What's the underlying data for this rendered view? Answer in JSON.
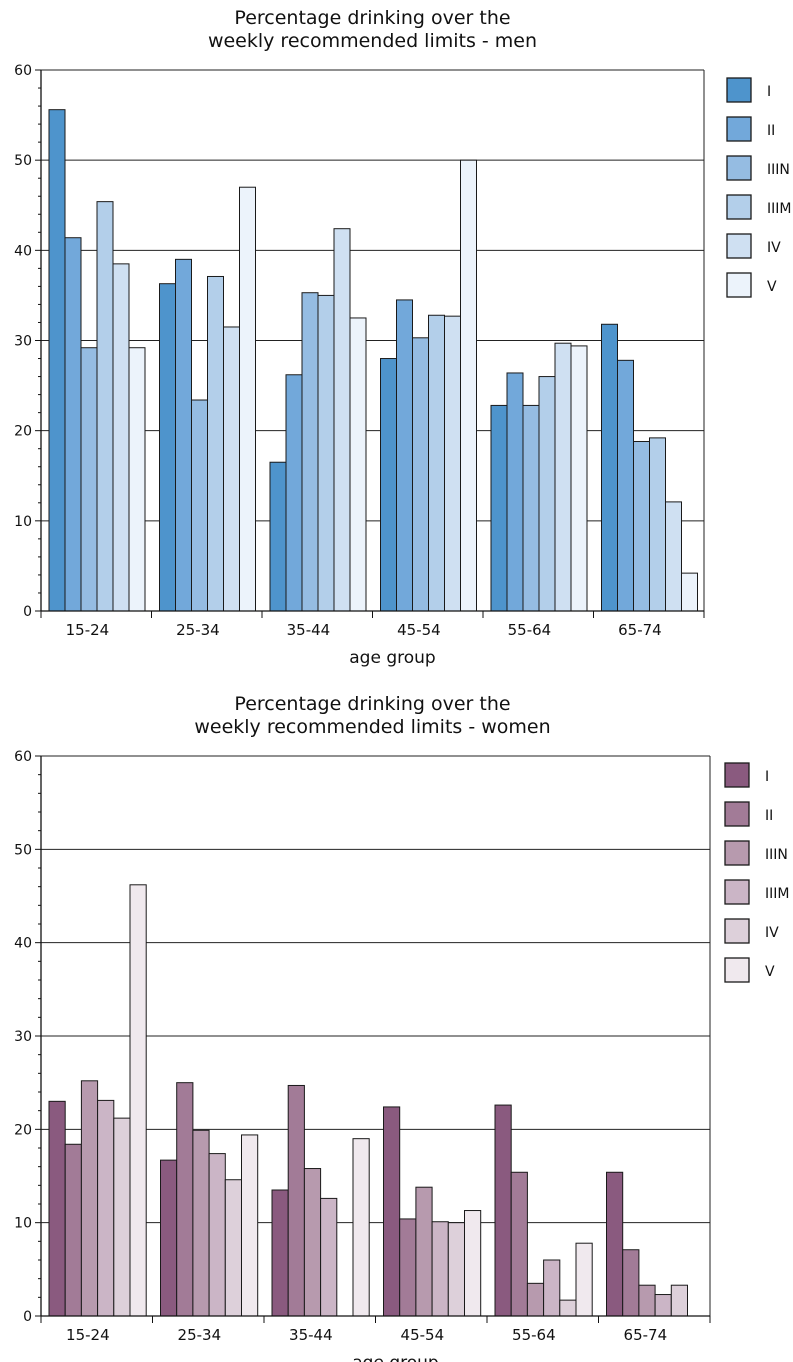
{
  "chart_data": [
    {
      "type": "bar",
      "title_line1": "Percentage drinking over the",
      "title_line2": "weekly recommended limits - men",
      "xlabel": "age group",
      "ylabel": "",
      "ylim": [
        0,
        60
      ],
      "yticks": [
        0,
        10,
        20,
        30,
        40,
        50,
        60
      ],
      "grid": true,
      "legend_position": "right",
      "categories": [
        "15-24",
        "25-34",
        "35-44",
        "45-54",
        "55-64",
        "65-74"
      ],
      "series": [
        {
          "name": "I",
          "color": "#4e94cc",
          "values": [
            55.6,
            36.3,
            16.5,
            28.0,
            22.8,
            31.8
          ]
        },
        {
          "name": "II",
          "color": "#72a8da",
          "values": [
            41.4,
            39.0,
            26.2,
            34.5,
            26.4,
            27.8
          ]
        },
        {
          "name": "IIIN",
          "color": "#95bce2",
          "values": [
            29.2,
            23.4,
            35.3,
            30.3,
            22.8,
            18.8
          ]
        },
        {
          "name": "IIIM",
          "color": "#b3cfea",
          "values": [
            45.4,
            37.1,
            35.0,
            32.8,
            26.0,
            19.2
          ]
        },
        {
          "name": "IV",
          "color": "#cfe0f2",
          "values": [
            38.5,
            31.5,
            42.4,
            32.7,
            29.7,
            12.1
          ]
        },
        {
          "name": "V",
          "color": "#ecf3fb",
          "values": [
            29.2,
            47.0,
            32.5,
            50.0,
            29.4,
            4.2
          ]
        }
      ]
    },
    {
      "type": "bar",
      "title_line1": "Percentage drinking over the",
      "title_line2": "weekly recommended limits - women",
      "xlabel": "age group",
      "ylabel": "",
      "ylim": [
        0,
        60
      ],
      "yticks": [
        0,
        10,
        20,
        30,
        40,
        50,
        60
      ],
      "grid": true,
      "legend_position": "right",
      "categories": [
        "15-24",
        "25-34",
        "35-44",
        "45-54",
        "55-64",
        "65-74"
      ],
      "series": [
        {
          "name": "I",
          "color": "#8a5a7f",
          "values": [
            23.0,
            16.7,
            13.5,
            22.4,
            22.6,
            15.4
          ]
        },
        {
          "name": "II",
          "color": "#a27b97",
          "values": [
            18.4,
            25.0,
            24.7,
            10.4,
            15.4,
            7.1
          ]
        },
        {
          "name": "IIIN",
          "color": "#b79aae",
          "values": [
            25.2,
            19.9,
            15.8,
            13.8,
            3.5,
            3.3
          ]
        },
        {
          "name": "IIIM",
          "color": "#cbb5c6",
          "values": [
            23.1,
            17.4,
            12.6,
            10.1,
            6.0,
            2.3
          ]
        },
        {
          "name": "IV",
          "color": "#ddd0da",
          "values": [
            21.2,
            14.6,
            null,
            10.0,
            1.7,
            3.3
          ]
        },
        {
          "name": "V",
          "color": "#f0e9ee",
          "values": [
            46.2,
            19.4,
            19.0,
            11.3,
            7.8,
            null
          ]
        }
      ]
    }
  ]
}
